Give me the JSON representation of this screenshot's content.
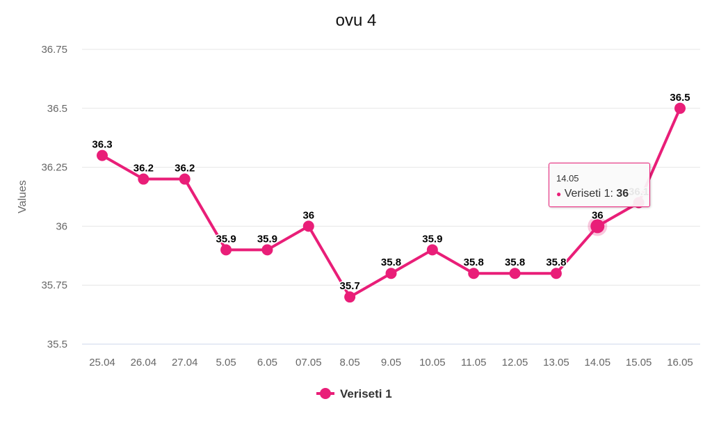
{
  "chart_data": {
    "type": "line",
    "title": "ovu 4",
    "ylabel": "Values",
    "xlabel": "",
    "categories": [
      "25.04",
      "26.04",
      "27.04",
      "5.05",
      "6.05",
      "07.05",
      "8.05",
      "9.05",
      "10.05",
      "11.05",
      "12.05",
      "13.05",
      "14.05",
      "15.05",
      "16.05"
    ],
    "series": [
      {
        "name": "Veriseti 1",
        "values": [
          36.3,
          36.2,
          36.2,
          35.9,
          35.9,
          36,
          35.7,
          35.8,
          35.9,
          35.8,
          35.8,
          35.8,
          36,
          36.1,
          36.5
        ],
        "color": "#e91e78"
      }
    ],
    "ylim": [
      35.5,
      36.75
    ],
    "yticks": [
      35.5,
      35.75,
      36,
      36.25,
      36.5,
      36.75
    ],
    "grid": true,
    "legend": "bottom-center",
    "data_labels": true
  },
  "tooltip": {
    "category": "14.05",
    "series": "Veriseti 1: ",
    "value": "36"
  }
}
